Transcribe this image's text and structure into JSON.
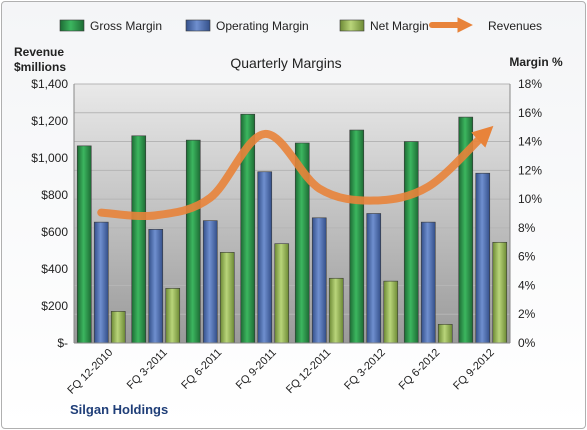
{
  "chart_data": {
    "type": "bar",
    "title": "Quarterly Margins",
    "company": "Silgan Holdings",
    "left_axis_label": [
      "Revenue",
      "$millions"
    ],
    "right_axis_label": "Margin %",
    "left_ticks": [
      "$-",
      "$200",
      "$400",
      "$600",
      "$800",
      "$1,000",
      "$1,200",
      "$1,400"
    ],
    "right_ticks": [
      "0%",
      "2%",
      "4%",
      "6%",
      "8%",
      "10%",
      "12%",
      "14%",
      "16%",
      "18%"
    ],
    "ylim_left": [
      0,
      1400
    ],
    "ylim_right": [
      0,
      18
    ],
    "categories": [
      "FQ 12-2010",
      "FQ 3-2011",
      "FQ 6-2011",
      "FQ 9-2011",
      "FQ 12-2011",
      "FQ 3-2012",
      "FQ 6-2012",
      "FQ 9-2012"
    ],
    "series": [
      {
        "name": "Gross Margin",
        "type": "bar",
        "axis": "right",
        "color": "#2e9e4f",
        "values": [
          13.7,
          14.4,
          14.1,
          15.9,
          13.9,
          14.8,
          14.0,
          15.7
        ]
      },
      {
        "name": "Operating Margin",
        "type": "bar",
        "axis": "right",
        "color": "#4f72b8",
        "values": [
          8.4,
          7.9,
          8.5,
          11.9,
          8.7,
          9.0,
          8.4,
          11.8
        ]
      },
      {
        "name": "Net Margin",
        "type": "bar",
        "axis": "right",
        "color": "#9bbb59",
        "values": [
          2.2,
          3.8,
          6.3,
          6.9,
          4.5,
          4.3,
          1.3,
          7.0
        ]
      },
      {
        "name": "Revenues",
        "type": "line",
        "axis": "left",
        "color": "#e8833a",
        "values": [
          705,
          690,
          785,
          1130,
          835,
          770,
          845,
          1120
        ]
      }
    ],
    "legend_position": "top",
    "grid": true
  }
}
